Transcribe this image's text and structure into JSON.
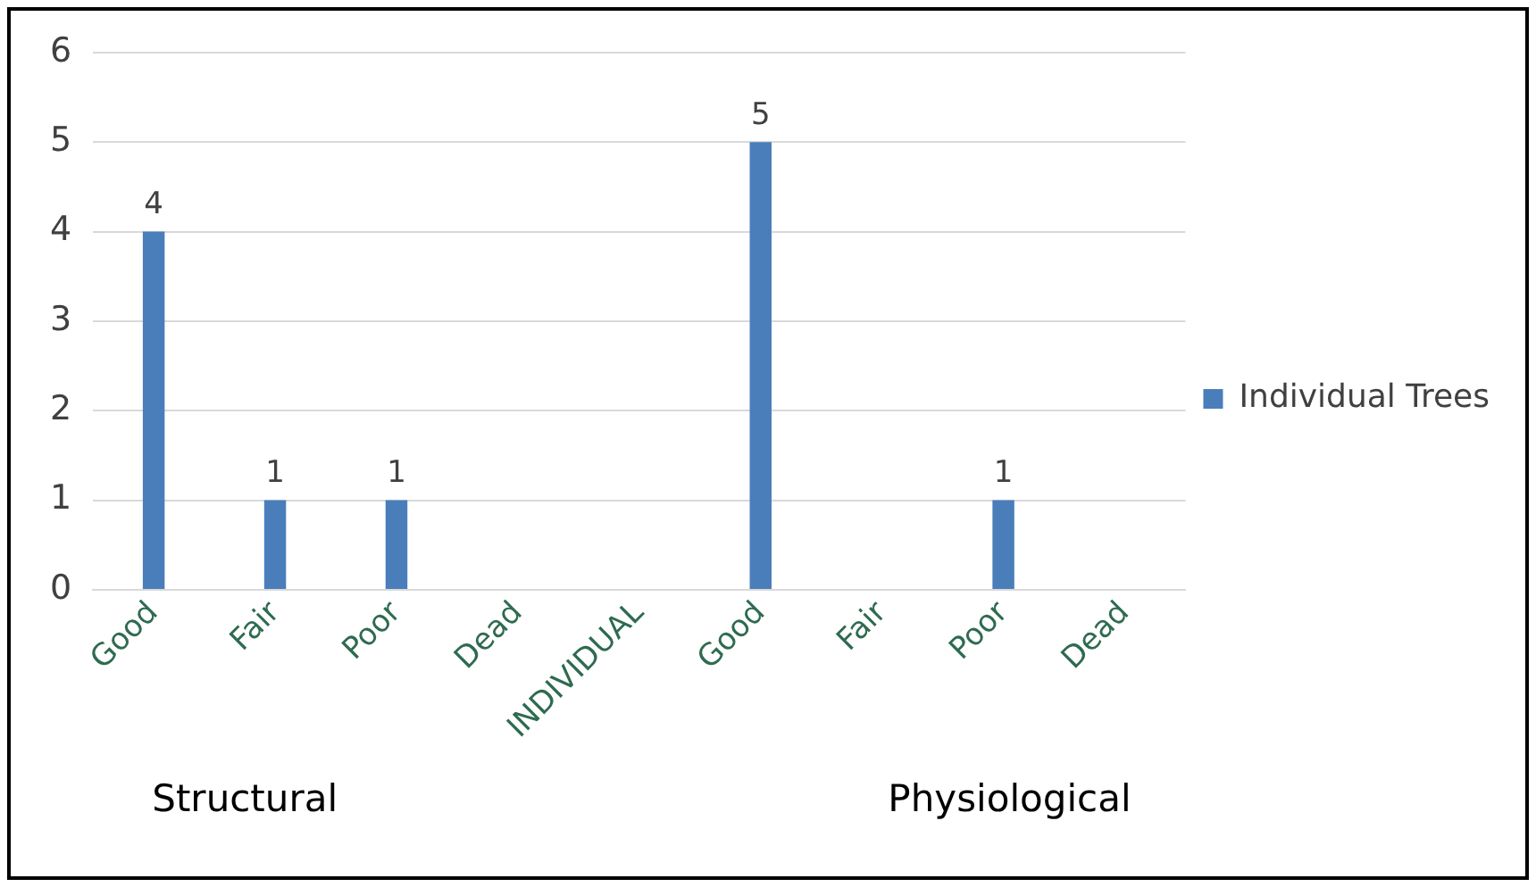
{
  "chart_data": {
    "type": "bar",
    "categories": [
      "Good",
      "Fair",
      "Poor",
      "Dead",
      "INDIVIDUAL",
      "Good",
      "Fair",
      "Poor",
      "Dead"
    ],
    "series": [
      {
        "name": "Individual Trees",
        "color": "#4a7ebb",
        "values": [
          4,
          1,
          1,
          0,
          null,
          5,
          0,
          1,
          0
        ],
        "value_labels": [
          "4",
          "1",
          "1",
          null,
          null,
          "5",
          null,
          "1",
          null
        ]
      }
    ],
    "ylim": [
      0,
      6
    ],
    "yticks": [
      0,
      1,
      2,
      3,
      4,
      5,
      6
    ],
    "grid": "y",
    "legend": "right",
    "annotations": [
      "Structural",
      "Physiological"
    ]
  }
}
